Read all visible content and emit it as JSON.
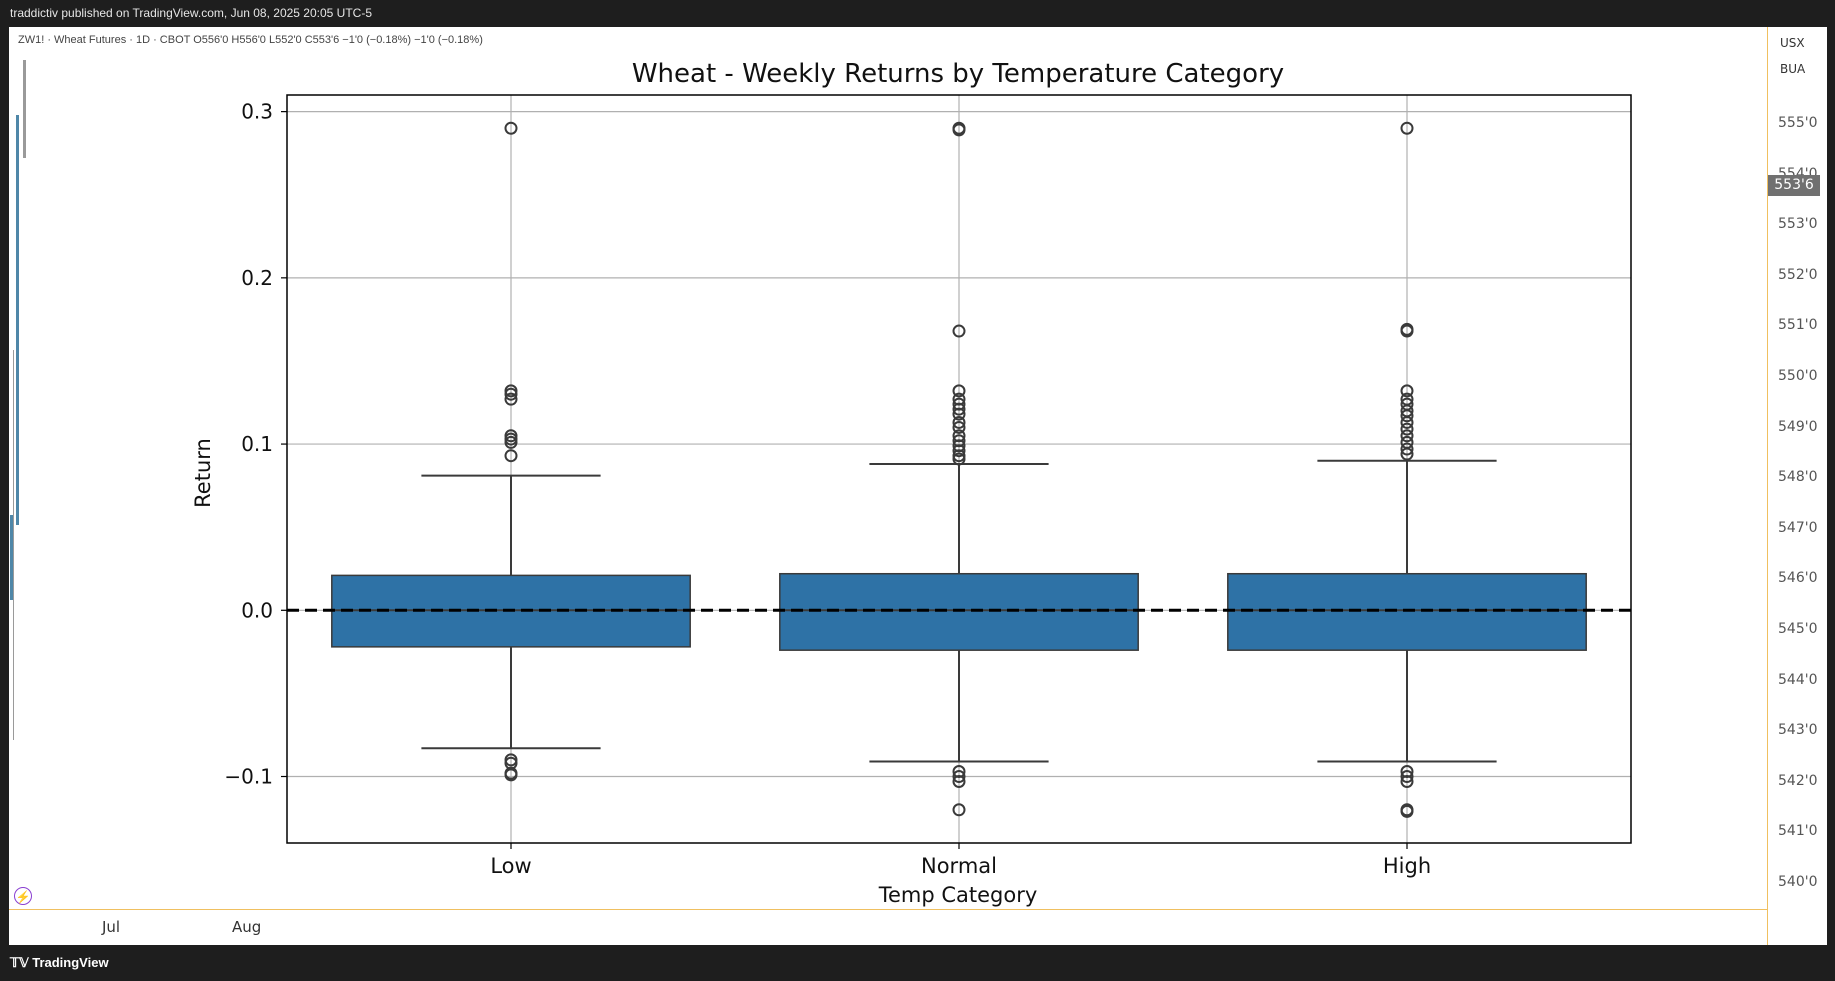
{
  "header": {
    "publisher_line": "traddictiv published on TradingView.com, Jun 08, 2025 20:05 UTC-5"
  },
  "symbol_line": "ZW1! · Wheat Futures · 1D · CBOT  O556'0  H556'0  L552'0  C553'6  −1'0 (−0.18%)  −1'0 (−0.18%)",
  "price_axis": {
    "currency": "USX",
    "unit": "BUA",
    "ticks": [
      "555'0",
      "554'0",
      "553'0",
      "552'0",
      "551'0",
      "550'0",
      "549'0",
      "548'0",
      "547'0",
      "546'0",
      "545'0",
      "544'0",
      "543'0",
      "542'0",
      "541'0",
      "540'0"
    ],
    "last_price": "553'6"
  },
  "time_axis": {
    "labels": [
      "Jul",
      "Aug"
    ]
  },
  "footer": {
    "brand": "TradingView"
  },
  "colors": {
    "box_fill": "#2e72a6",
    "box_edge": "#3a3a3a",
    "grid": "#b0b0b0",
    "zero_line": "#000000",
    "badge": "#707070"
  },
  "chart_data": {
    "type": "box",
    "title": "Wheat - Weekly Returns by Temperature Category",
    "xlabel": "Temp Category",
    "ylabel": "Return",
    "ylim": [
      -0.14,
      0.31
    ],
    "yticks": [
      -0.1,
      0.0,
      0.1,
      0.2,
      0.3
    ],
    "ytick_labels": [
      "−0.1",
      "0.0",
      "0.1",
      "0.2",
      "0.3"
    ],
    "grid": true,
    "reference_line": {
      "y": 0.0,
      "style": "dashed"
    },
    "categories": [
      "Low",
      "Normal",
      "High"
    ],
    "boxes": [
      {
        "name": "Low",
        "whisker_low": -0.083,
        "q1": -0.022,
        "median": 0.0,
        "q3": 0.021,
        "whisker_high": 0.081,
        "outliers": [
          0.29,
          0.132,
          0.13,
          0.127,
          0.105,
          0.103,
          0.101,
          0.093,
          -0.09,
          -0.092,
          -0.098,
          -0.099
        ]
      },
      {
        "name": "Normal",
        "whisker_low": -0.091,
        "q1": -0.024,
        "median": 0.0,
        "q3": 0.022,
        "whisker_high": 0.088,
        "outliers": [
          0.29,
          0.289,
          0.168,
          0.132,
          0.127,
          0.124,
          0.121,
          0.118,
          0.113,
          0.11,
          0.105,
          0.102,
          0.099,
          0.096,
          0.093,
          0.091,
          -0.097,
          -0.1,
          -0.103,
          -0.12
        ]
      },
      {
        "name": "High",
        "whisker_low": -0.091,
        "q1": -0.024,
        "median": 0.0,
        "q3": 0.022,
        "whisker_high": 0.09,
        "outliers": [
          0.29,
          0.169,
          0.168,
          0.132,
          0.127,
          0.124,
          0.12,
          0.117,
          0.113,
          0.109,
          0.105,
          0.101,
          0.097,
          0.094,
          -0.097,
          -0.1,
          -0.103,
          -0.12,
          -0.121
        ]
      }
    ]
  }
}
